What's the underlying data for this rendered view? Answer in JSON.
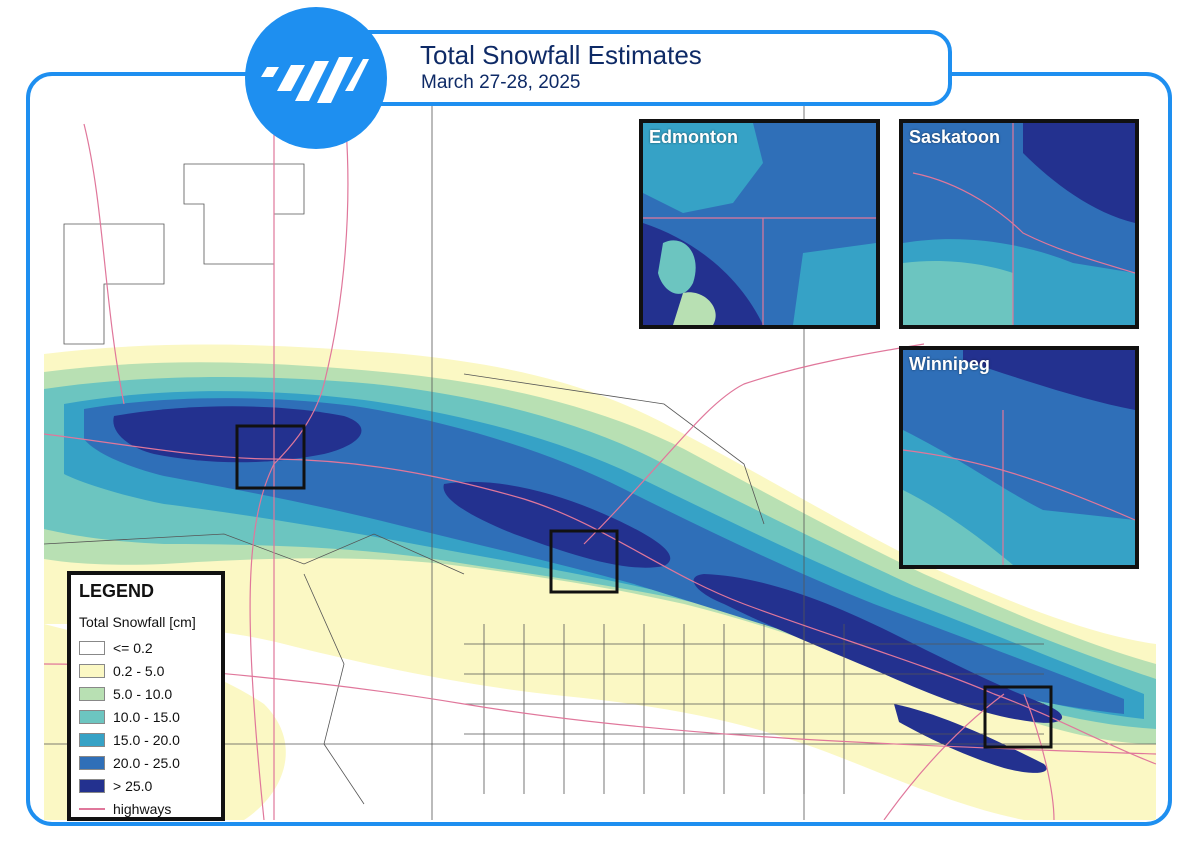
{
  "header": {
    "title": "Total Snowfall Estimates",
    "subtitle": "March 27-28, 2025"
  },
  "icons": {
    "logo": "weather-network-slash-logo-icon"
  },
  "colors": {
    "frame": "#1e8ff0",
    "title": "#0e2a66",
    "highway": "#e0779b",
    "bins": [
      "#ffffff",
      "#fbf8c4",
      "#b8e0b3",
      "#6cc5c0",
      "#36a2c6",
      "#2f6fb8",
      "#23318f"
    ]
  },
  "insets": [
    {
      "label": "Edmonton"
    },
    {
      "label": "Saskatoon"
    },
    {
      "label": "Winnipeg"
    }
  ],
  "legend": {
    "title": "LEGEND",
    "subtitle": "Total Snowfall [cm]",
    "items": [
      {
        "label": "<= 0.2"
      },
      {
        "label": "0.2 - 5.0"
      },
      {
        "label": "5.0 - 10.0"
      },
      {
        "label": "10.0 - 15.0"
      },
      {
        "label": "15.0 - 20.0"
      },
      {
        "label": "20.0 - 25.0"
      },
      {
        "label": "> 25.0"
      }
    ],
    "highways_label": "highways"
  }
}
